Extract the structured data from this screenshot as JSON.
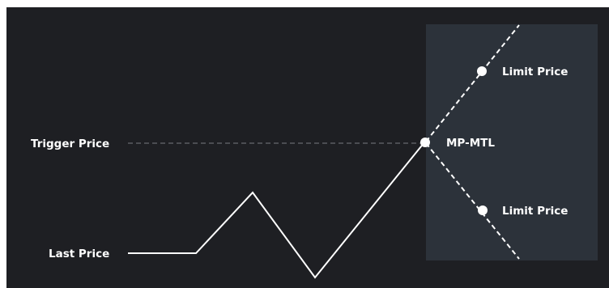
{
  "labels": {
    "trigger_price": "Trigger Price",
    "last_price": "Last Price",
    "mp_mtl": "MP-MTL",
    "limit_price_upper": "Limit Price",
    "limit_price_lower": "Limit Price"
  },
  "colors": {
    "background": "#1e1f23",
    "panel": "#2c323a",
    "line": "#ffffff",
    "dashed_guide": "#5a5d63"
  }
}
